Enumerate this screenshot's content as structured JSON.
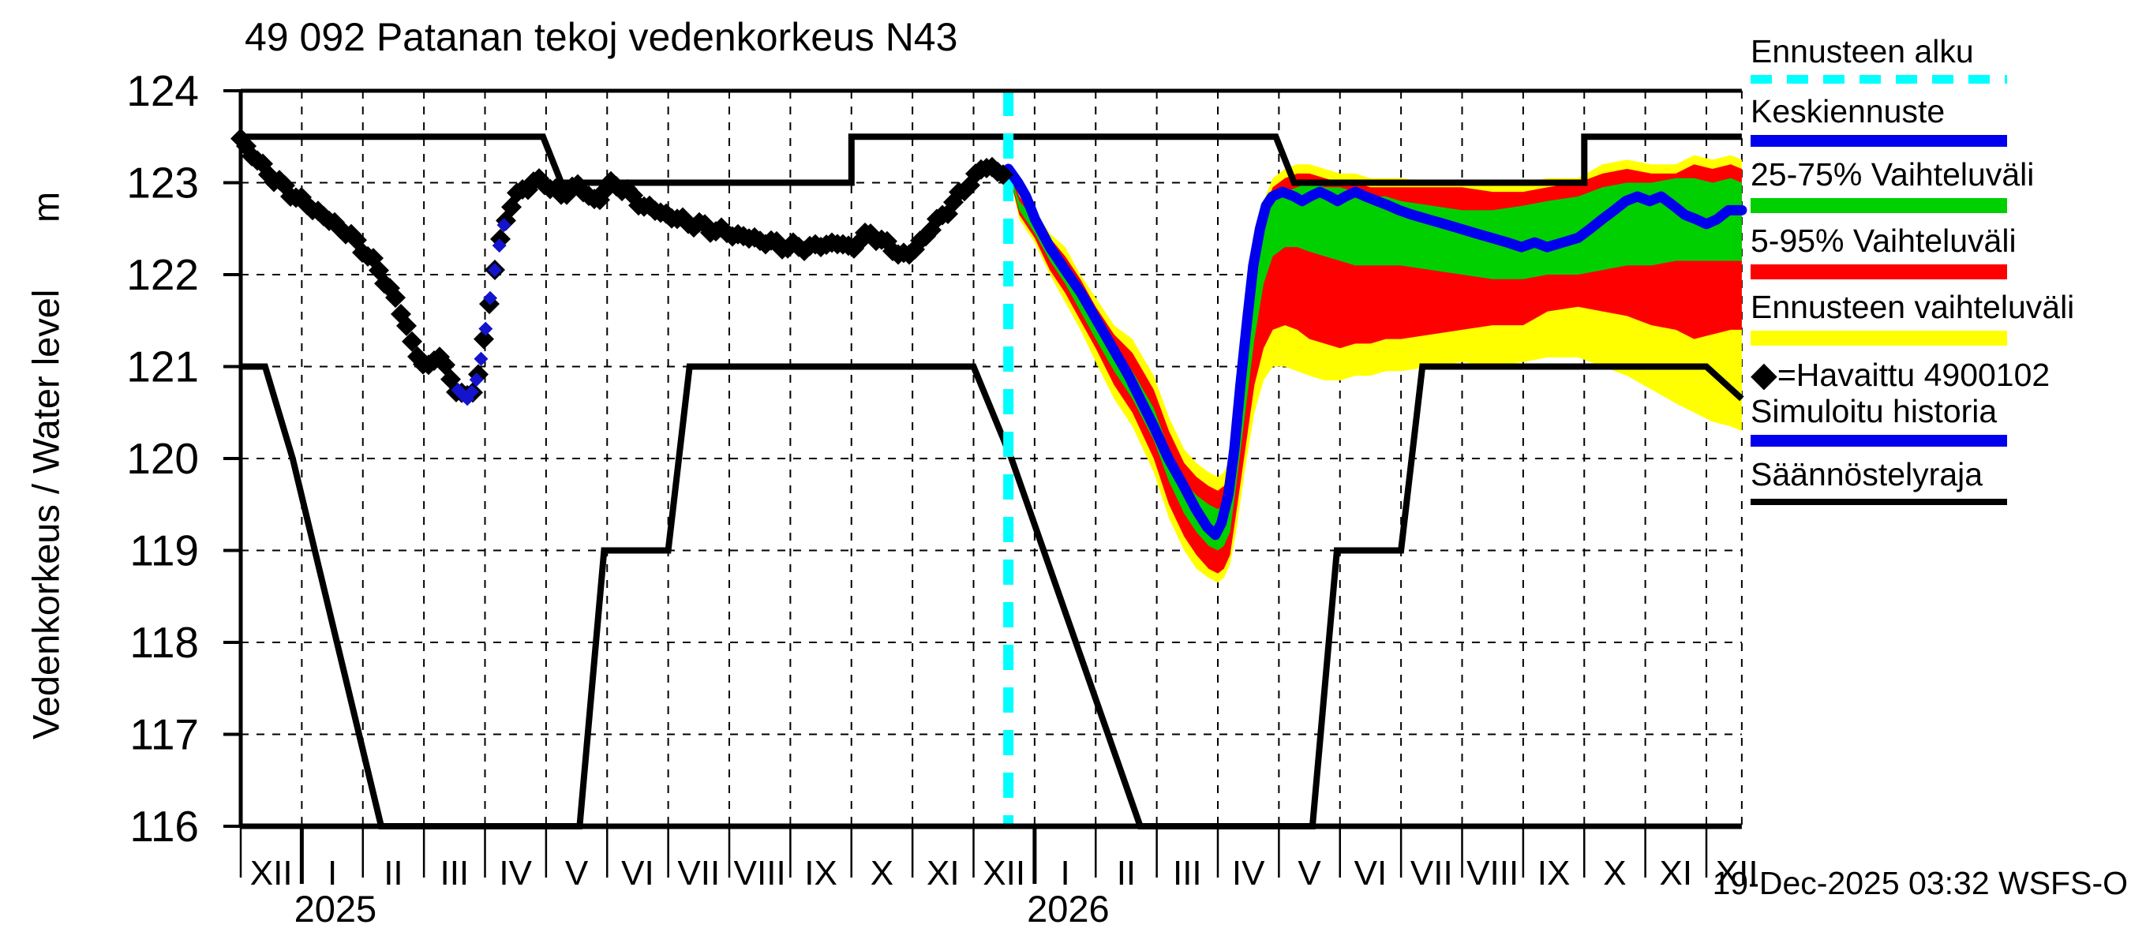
{
  "title": "49 092 Patanan tekoj vedenkorkeus N43",
  "y_axis": {
    "label": "Vedenkorkeus / Water level",
    "unit": "m"
  },
  "timestamp": "19-Dec-2025 03:32 WSFS-O",
  "legend": [
    {
      "label": "Ennusteen alku",
      "type": "dashed",
      "color": "#00ffff",
      "marker": ""
    },
    {
      "label": "Keskiennuste",
      "type": "line",
      "color": "#0000ee",
      "marker": ""
    },
    {
      "label": "25-75% Vaihteluväli",
      "type": "bar",
      "color": "#00d000",
      "marker": ""
    },
    {
      "label": "5-95% Vaihteluväli",
      "type": "bar",
      "color": "#ff0000",
      "marker": ""
    },
    {
      "label": "Ennusteen vaihteluväli",
      "type": "bar",
      "color": "#ffff00",
      "marker": ""
    },
    {
      "label": "=Havaittu 4900102",
      "type": "none",
      "color": "#000000",
      "marker": "◆"
    },
    {
      "label": "Simuloitu historia",
      "type": "line",
      "color": "#0000ee",
      "marker": ""
    },
    {
      "label": "Säännöstelyraja",
      "type": "thinline",
      "color": "#000000",
      "marker": ""
    }
  ],
  "chart_data": {
    "type": "line",
    "title": "49 092 Patanan tekoj vedenkorkeus N43",
    "ylabel": "Vedenkorkeus / Water level m",
    "ylim": [
      116,
      124
    ],
    "y_ticks": [
      116,
      117,
      118,
      119,
      120,
      121,
      122,
      123,
      124
    ],
    "x_month_labels": [
      "XII",
      "I",
      "II",
      "III",
      "IV",
      "V",
      "VI",
      "VII",
      "VIII",
      "IX",
      "X",
      "XI",
      "XII",
      "I",
      "II",
      "III",
      "IV",
      "V",
      "VI",
      "VII",
      "VIII",
      "IX",
      "X",
      "XI",
      "XII"
    ],
    "x_years": [
      {
        "label": "2025",
        "month": 1
      },
      {
        "label": "2026",
        "month": 13
      }
    ],
    "x_month_span": 24.58,
    "forecast_start_month": 12.57,
    "grid": true,
    "colors": {
      "observed": "#000000",
      "simulated_history": "#1414cc",
      "median": "#0000ee",
      "band_25_75": "#00d000",
      "band_5_95": "#ff0000",
      "band_minmax": "#ffff00",
      "forecast_start": "#00ffff",
      "regulation": "#000000"
    },
    "observed": [
      [
        0.0,
        123.48
      ],
      [
        0.13,
        123.35
      ],
      [
        0.32,
        123.2
      ],
      [
        0.58,
        123.02
      ],
      [
        0.84,
        122.88
      ],
      [
        1.0,
        122.8
      ],
      [
        1.23,
        122.7
      ],
      [
        1.49,
        122.57
      ],
      [
        1.74,
        122.46
      ],
      [
        2.04,
        122.25
      ],
      [
        2.26,
        122.05
      ],
      [
        2.52,
        121.75
      ],
      [
        2.71,
        121.45
      ],
      [
        2.84,
        121.2
      ],
      [
        2.95,
        121.05
      ],
      [
        3.04,
        120.95
      ],
      [
        3.14,
        121.08
      ],
      [
        3.24,
        121.15
      ],
      [
        3.36,
        120.95
      ],
      [
        3.49,
        120.8
      ],
      [
        3.62,
        120.7
      ],
      [
        3.71,
        120.65
      ],
      [
        3.81,
        120.75
      ],
      [
        3.88,
        120.9
      ],
      [
        3.94,
        121.1
      ],
      [
        4.03,
        121.5
      ],
      [
        4.12,
        121.9
      ],
      [
        4.2,
        122.2
      ],
      [
        4.29,
        122.5
      ],
      [
        4.39,
        122.7
      ],
      [
        4.52,
        122.85
      ],
      [
        4.65,
        122.95
      ],
      [
        4.78,
        123.0
      ],
      [
        4.98,
        123.0
      ],
      [
        5.1,
        122.95
      ],
      [
        5.23,
        122.85
      ],
      [
        5.36,
        122.9
      ],
      [
        5.49,
        123.0
      ],
      [
        5.62,
        122.9
      ],
      [
        5.75,
        122.8
      ],
      [
        5.88,
        122.85
      ],
      [
        5.98,
        122.92
      ],
      [
        6.11,
        123.0
      ],
      [
        6.24,
        122.95
      ],
      [
        6.4,
        122.85
      ],
      [
        6.59,
        122.75
      ],
      [
        6.79,
        122.7
      ],
      [
        6.98,
        122.65
      ],
      [
        7.17,
        122.6
      ],
      [
        7.43,
        122.55
      ],
      [
        7.69,
        122.5
      ],
      [
        7.99,
        122.45
      ],
      [
        8.33,
        122.4
      ],
      [
        8.66,
        122.35
      ],
      [
        8.98,
        122.3
      ],
      [
        9.37,
        122.3
      ],
      [
        9.76,
        122.35
      ],
      [
        9.99,
        122.28
      ],
      [
        10.14,
        122.38
      ],
      [
        10.34,
        122.45
      ],
      [
        10.53,
        122.35
      ],
      [
        10.73,
        122.25
      ],
      [
        10.92,
        122.2
      ],
      [
        11.01,
        122.26
      ],
      [
        11.18,
        122.4
      ],
      [
        11.37,
        122.55
      ],
      [
        11.57,
        122.7
      ],
      [
        11.76,
        122.85
      ],
      [
        11.93,
        123.0
      ],
      [
        12.08,
        123.1
      ],
      [
        12.24,
        123.2
      ],
      [
        12.34,
        123.15
      ],
      [
        12.45,
        123.07
      ],
      [
        12.51,
        123.12
      ],
      [
        12.57,
        123.15
      ]
    ],
    "simulated_history_segment": {
      "from": 3.56,
      "to": 4.38,
      "step": 0.075
    },
    "forecast_median": [
      [
        12.57,
        123.15
      ],
      [
        12.73,
        123.0
      ],
      [
        12.86,
        122.85
      ],
      [
        13.01,
        122.6
      ],
      [
        13.25,
        122.3
      ],
      [
        13.5,
        122.05
      ],
      [
        13.76,
        121.8
      ],
      [
        14.02,
        121.5
      ],
      [
        14.28,
        121.2
      ],
      [
        14.54,
        120.9
      ],
      [
        14.8,
        120.55
      ],
      [
        14.95,
        120.35
      ],
      [
        15.19,
        120.0
      ],
      [
        15.44,
        119.7
      ],
      [
        15.64,
        119.45
      ],
      [
        15.83,
        119.25
      ],
      [
        15.96,
        119.17
      ],
      [
        16.06,
        119.3
      ],
      [
        16.17,
        119.6
      ],
      [
        16.27,
        120.1
      ],
      [
        16.37,
        120.8
      ],
      [
        16.48,
        121.5
      ],
      [
        16.58,
        122.1
      ],
      [
        16.69,
        122.5
      ],
      [
        16.79,
        122.75
      ],
      [
        16.89,
        122.85
      ],
      [
        17.06,
        122.9
      ],
      [
        17.25,
        122.85
      ],
      [
        17.38,
        122.8
      ],
      [
        17.51,
        122.85
      ],
      [
        17.67,
        122.9
      ],
      [
        17.83,
        122.85
      ],
      [
        17.96,
        122.8
      ],
      [
        18.09,
        122.85
      ],
      [
        18.25,
        122.9
      ],
      [
        18.42,
        122.85
      ],
      [
        18.61,
        122.8
      ],
      [
        18.8,
        122.75
      ],
      [
        18.97,
        122.7
      ],
      [
        19.19,
        122.65
      ],
      [
        19.45,
        122.6
      ],
      [
        19.71,
        122.55
      ],
      [
        19.97,
        122.5
      ],
      [
        20.22,
        122.45
      ],
      [
        20.48,
        122.4
      ],
      [
        20.74,
        122.35
      ],
      [
        20.97,
        122.3
      ],
      [
        21.19,
        122.35
      ],
      [
        21.39,
        122.3
      ],
      [
        21.65,
        122.35
      ],
      [
        21.9,
        122.4
      ],
      [
        22.1,
        122.5
      ],
      [
        22.29,
        122.6
      ],
      [
        22.49,
        122.7
      ],
      [
        22.68,
        122.8
      ],
      [
        22.87,
        122.85
      ],
      [
        23.07,
        122.8
      ],
      [
        23.26,
        122.85
      ],
      [
        23.46,
        122.75
      ],
      [
        23.65,
        122.65
      ],
      [
        23.84,
        122.6
      ],
      [
        24.0,
        122.55
      ],
      [
        24.17,
        122.6
      ],
      [
        24.36,
        122.7
      ],
      [
        24.58,
        122.7
      ]
    ],
    "bands": {
      "x": [
        12.56,
        12.75,
        13.0,
        13.25,
        13.5,
        13.75,
        14.0,
        14.3,
        14.6,
        14.95,
        15.2,
        15.45,
        15.65,
        15.85,
        16.0,
        16.1,
        16.2,
        16.3,
        16.45,
        16.6,
        16.75,
        16.9,
        17.1,
        17.3,
        17.5,
        17.75,
        18.0,
        18.25,
        18.5,
        18.75,
        19.0,
        19.5,
        20.0,
        20.5,
        21.0,
        21.4,
        21.9,
        22.3,
        22.7,
        23.1,
        23.5,
        23.8,
        24.1,
        24.4,
        24.58
      ],
      "yellow_top": [
        123.15,
        122.9,
        122.7,
        122.45,
        122.3,
        122.0,
        121.75,
        121.45,
        121.3,
        120.9,
        120.45,
        120.1,
        119.95,
        119.85,
        119.8,
        119.85,
        120.0,
        120.6,
        121.5,
        122.3,
        122.8,
        123.05,
        123.15,
        123.2,
        123.2,
        123.15,
        123.1,
        123.1,
        123.05,
        123.05,
        123.05,
        123.0,
        123.0,
        123.0,
        123.0,
        123.05,
        123.05,
        123.2,
        123.25,
        123.2,
        123.2,
        123.3,
        123.25,
        123.3,
        123.25
      ],
      "red_top": [
        123.15,
        122.85,
        122.65,
        122.4,
        122.2,
        121.95,
        121.65,
        121.35,
        121.15,
        120.75,
        120.3,
        119.95,
        119.8,
        119.7,
        119.65,
        119.7,
        119.85,
        120.4,
        121.3,
        122.15,
        122.7,
        122.95,
        123.05,
        123.1,
        123.1,
        123.05,
        123.0,
        123.0,
        122.95,
        122.95,
        122.95,
        122.95,
        122.95,
        122.9,
        122.9,
        122.95,
        123.0,
        123.1,
        123.15,
        123.1,
        123.1,
        123.2,
        123.15,
        123.2,
        123.15
      ],
      "green_top": [
        123.15,
        122.8,
        122.6,
        122.3,
        122.1,
        121.8,
        121.5,
        121.2,
        120.95,
        120.55,
        120.1,
        119.75,
        119.6,
        119.5,
        119.45,
        119.5,
        119.7,
        120.2,
        121.1,
        121.95,
        122.5,
        122.8,
        122.9,
        122.95,
        123.0,
        122.95,
        122.95,
        122.9,
        122.85,
        122.85,
        122.8,
        122.75,
        122.7,
        122.7,
        122.75,
        122.8,
        122.85,
        122.95,
        123.0,
        123.0,
        123.05,
        123.05,
        123.0,
        123.05,
        123.0
      ],
      "green_bottom": [
        123.15,
        122.7,
        122.45,
        122.15,
        121.9,
        121.6,
        121.3,
        120.95,
        120.65,
        120.2,
        119.75,
        119.4,
        119.2,
        119.05,
        119.0,
        119.05,
        119.2,
        119.7,
        120.5,
        121.3,
        121.9,
        122.2,
        122.3,
        122.3,
        122.25,
        122.2,
        122.15,
        122.1,
        122.1,
        122.1,
        122.1,
        122.05,
        122.0,
        121.95,
        121.95,
        122.0,
        122.0,
        122.05,
        122.1,
        122.1,
        122.15,
        122.15,
        122.15,
        122.15,
        122.15
      ],
      "red_bottom": [
        123.15,
        122.65,
        122.4,
        122.05,
        121.8,
        121.5,
        121.2,
        120.8,
        120.5,
        120.0,
        119.5,
        119.15,
        118.95,
        118.8,
        118.75,
        118.8,
        118.95,
        119.4,
        120.1,
        120.8,
        121.2,
        121.4,
        121.45,
        121.4,
        121.3,
        121.25,
        121.2,
        121.25,
        121.25,
        121.3,
        121.3,
        121.35,
        121.4,
        121.45,
        121.45,
        121.6,
        121.65,
        121.6,
        121.55,
        121.45,
        121.4,
        121.3,
        121.35,
        121.4,
        121.4
      ],
      "yellow_bottom": [
        123.15,
        122.6,
        122.35,
        122.0,
        121.7,
        121.4,
        121.05,
        120.65,
        120.35,
        119.85,
        119.35,
        119.0,
        118.8,
        118.7,
        118.65,
        118.7,
        118.85,
        119.2,
        119.9,
        120.5,
        120.85,
        121.0,
        121.0,
        120.95,
        120.9,
        120.85,
        120.85,
        120.9,
        120.9,
        120.95,
        120.95,
        121.0,
        121.05,
        121.0,
        121.05,
        121.1,
        121.1,
        121.0,
        120.9,
        120.75,
        120.6,
        120.5,
        120.4,
        120.35,
        120.3
      ]
    },
    "regulation_upper": [
      [
        0,
        123.5
      ],
      [
        4.95,
        123.5
      ],
      [
        5.25,
        123.0
      ],
      [
        10.0,
        123.0
      ],
      [
        10.0,
        123.5
      ],
      [
        16.95,
        123.5
      ],
      [
        17.25,
        123.0
      ],
      [
        22.0,
        123.0
      ],
      [
        22.0,
        123.5
      ],
      [
        24.58,
        123.5
      ]
    ],
    "regulation_lower": [
      [
        0,
        121.0
      ],
      [
        0.4,
        121.0
      ],
      [
        0.85,
        120.0
      ],
      [
        2.3,
        116.0
      ],
      [
        5.55,
        116.0
      ],
      [
        5.95,
        119.0
      ],
      [
        7.0,
        119.0
      ],
      [
        7.35,
        121.0
      ],
      [
        12.0,
        121.0
      ],
      [
        12.62,
        120.0
      ],
      [
        14.73,
        116.0
      ],
      [
        17.55,
        116.0
      ],
      [
        17.95,
        119.0
      ],
      [
        19.0,
        119.0
      ],
      [
        19.35,
        121.0
      ],
      [
        24.0,
        121.0
      ],
      [
        24.58,
        120.65
      ]
    ]
  }
}
